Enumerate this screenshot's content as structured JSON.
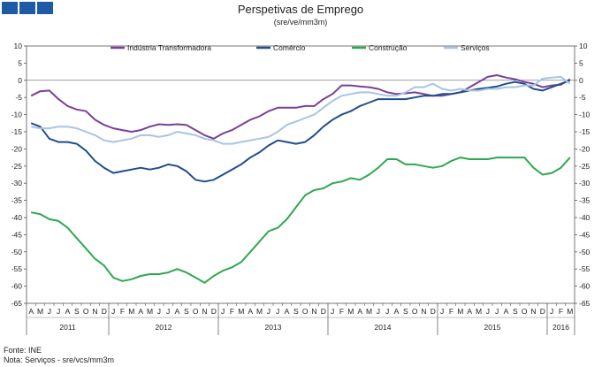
{
  "chart_data": {
    "type": "line",
    "title": "Perspetivas de Emprego",
    "subtitle": "(sre/ve/mm3m)",
    "xlabel": "",
    "ylabel": "",
    "ylim": [
      -65,
      10
    ],
    "yticks": [
      10,
      5,
      0,
      -5,
      -10,
      -15,
      -20,
      -25,
      -30,
      -35,
      -40,
      -45,
      -50,
      -55,
      -60,
      -65
    ],
    "grid": false,
    "legend_position": "top",
    "months": [
      "A",
      "M",
      "J",
      "J",
      "A",
      "S",
      "O",
      "N",
      "D",
      "J",
      "F",
      "M",
      "A",
      "M",
      "J",
      "J",
      "A",
      "S",
      "O",
      "N",
      "D",
      "J",
      "F",
      "M",
      "A",
      "M",
      "J",
      "J",
      "A",
      "S",
      "O",
      "N",
      "D",
      "J",
      "F",
      "M",
      "A",
      "M",
      "J",
      "J",
      "A",
      "S",
      "O",
      "N",
      "D",
      "J",
      "F",
      "M",
      "A",
      "M",
      "J",
      "J",
      "A",
      "S",
      "O",
      "N",
      "D",
      "J",
      "F",
      "M"
    ],
    "years": [
      {
        "label": "2011",
        "start": 0,
        "end": 8
      },
      {
        "label": "2012",
        "start": 9,
        "end": 20
      },
      {
        "label": "2013",
        "start": 21,
        "end": 32
      },
      {
        "label": "2014",
        "start": 33,
        "end": 44
      },
      {
        "label": "2015",
        "start": 45,
        "end": 56
      },
      {
        "label": "2016",
        "start": 57,
        "end": 59
      }
    ],
    "series": [
      {
        "name": "Indústria Transformadora",
        "color": "#7b3f98",
        "values": [
          -4.5,
          -3.2,
          -3,
          -5.5,
          -7.5,
          -8.5,
          -9,
          -11.5,
          -13,
          -14,
          -14.5,
          -15,
          -14.5,
          -13.5,
          -12.8,
          -13,
          -12.8,
          -13,
          -14.5,
          -16,
          -17,
          -15.5,
          -14.5,
          -13,
          -11.5,
          -10.5,
          -9,
          -8,
          -8,
          -8,
          -7.5,
          -7.5,
          -5.5,
          -4,
          -1.5,
          -1.5,
          -1.8,
          -2,
          -2.5,
          -3.5,
          -4,
          -3.8,
          -3.5,
          -4,
          -4.5,
          -4.5,
          -4,
          -3.5,
          -2,
          -0.5,
          1,
          1.5,
          0.8,
          0.3,
          -0.5,
          -1,
          -2,
          -1.5,
          -1.3,
          0.3
        ]
      },
      {
        "name": "Comércio",
        "color": "#1f4e8c",
        "values": [
          -12.5,
          -13.5,
          -17,
          -18,
          -18,
          -18.5,
          -20.5,
          -23.5,
          -25.5,
          -27,
          -26.5,
          -26,
          -25.5,
          -26,
          -25.5,
          -24.5,
          -25,
          -26.5,
          -29,
          -29.5,
          -29,
          -27.5,
          -26,
          -24.5,
          -22.5,
          -21,
          -19,
          -17.5,
          -18,
          -18.5,
          -18,
          -16,
          -13.5,
          -11.5,
          -10,
          -9,
          -7.5,
          -6.5,
          -5.5,
          -5.5,
          -5.5,
          -5.5,
          -5,
          -4.5,
          -4.5,
          -4,
          -4,
          -3.5,
          -3,
          -2.5,
          -2.2,
          -1.8,
          -1,
          -0.5,
          -1,
          -2.5,
          -3,
          -2,
          -1,
          0
        ]
      },
      {
        "name": "Construção",
        "color": "#2ea84f",
        "values": [
          -38.5,
          -39,
          -40.5,
          -41,
          -43,
          -46,
          -49,
          -52,
          -54,
          -57.5,
          -58.5,
          -58,
          -57,
          -56.5,
          -56.5,
          -56,
          -55,
          -56,
          -57.5,
          -59,
          -57,
          -55.5,
          -54.5,
          -53,
          -50,
          -47,
          -44,
          -43,
          -40.5,
          -37,
          -33.5,
          -32,
          -31.5,
          -30,
          -29.5,
          -28.5,
          -29,
          -27.5,
          -25.5,
          -23,
          -23,
          -24.5,
          -24.5,
          -25,
          -25.5,
          -25,
          -23.5,
          -22.5,
          -23,
          -23,
          -23,
          -22.5,
          -22.5,
          -22.5,
          -22.5,
          -25.5,
          -27.5,
          -27,
          -25.5,
          -22.5
        ]
      },
      {
        "name": "Serviços",
        "color": "#a8c4e3",
        "values": [
          -13.5,
          -14,
          -14,
          -13.5,
          -13.5,
          -14,
          -15,
          -16,
          -17.5,
          -18,
          -17.5,
          -17,
          -16,
          -16,
          -16.5,
          -16,
          -15,
          -15.5,
          -16,
          -17,
          -17.5,
          -18.5,
          -18.5,
          -18,
          -17.5,
          -17,
          -16.5,
          -15,
          -13,
          -12,
          -11,
          -10,
          -8,
          -6,
          -4.5,
          -4,
          -3.5,
          -3.5,
          -4,
          -4.5,
          -4.5,
          -3.5,
          -2,
          -2,
          -1,
          -2.5,
          -3,
          -2.5,
          -3,
          -3,
          -2.5,
          -2.5,
          -2,
          -2,
          -1.5,
          -1.5,
          0.5,
          0.8,
          1,
          -1
        ]
      }
    ]
  },
  "footer": {
    "source": "Fonte: INE",
    "note": "Nota: Serviços - sre/vcs/mm3m"
  }
}
